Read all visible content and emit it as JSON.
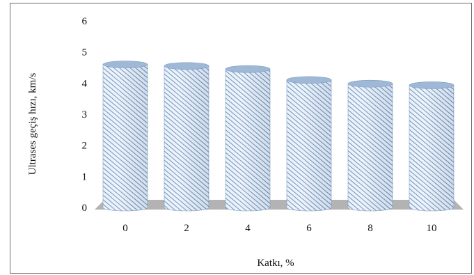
{
  "chart_data": {
    "type": "bar",
    "style": "3d-cylinder",
    "categories": [
      "0",
      "2",
      "4",
      "6",
      "8",
      "10"
    ],
    "values": [
      4.6,
      4.55,
      4.45,
      4.1,
      3.98,
      3.93
    ],
    "xlabel": "Katkı, %",
    "ylabel": "Ultrases geçiş hızı, km/s",
    "ylim": [
      0,
      6
    ],
    "yticks": [
      "0",
      "1",
      "2",
      "3",
      "4",
      "5",
      "6"
    ],
    "grid": false,
    "legend": "none",
    "colors": {
      "bar_fill": "#e9f0f8",
      "bar_hatch": "#5f87b7",
      "bar_top": "#9fb8d6",
      "floor": "#b3b3b3"
    }
  }
}
